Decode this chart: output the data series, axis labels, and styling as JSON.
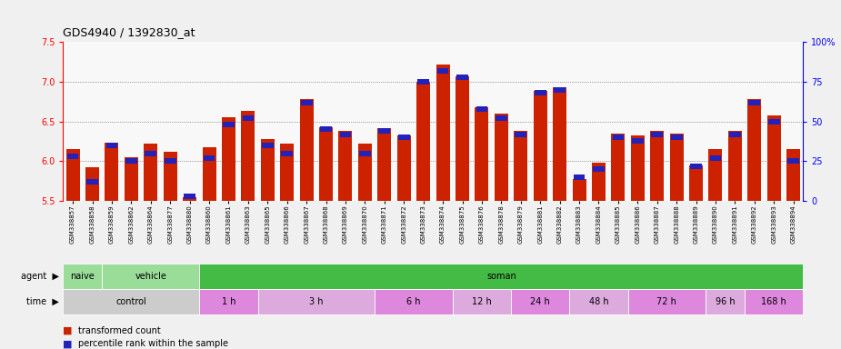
{
  "title": "GDS4940 / 1392830_at",
  "samples": [
    "GSM338857",
    "GSM338858",
    "GSM338859",
    "GSM338862",
    "GSM338864",
    "GSM338877",
    "GSM338880",
    "GSM338860",
    "GSM338861",
    "GSM338863",
    "GSM338865",
    "GSM338866",
    "GSM338867",
    "GSM338868",
    "GSM338869",
    "GSM338870",
    "GSM338871",
    "GSM338872",
    "GSM338873",
    "GSM338874",
    "GSM338875",
    "GSM338876",
    "GSM338878",
    "GSM338879",
    "GSM338881",
    "GSM338882",
    "GSM338883",
    "GSM338884",
    "GSM338885",
    "GSM338886",
    "GSM338887",
    "GSM338888",
    "GSM338889",
    "GSM338890",
    "GSM338891",
    "GSM338892",
    "GSM338893",
    "GSM338894"
  ],
  "bar_values": [
    6.15,
    5.92,
    6.23,
    6.05,
    6.22,
    6.12,
    5.55,
    6.18,
    6.55,
    6.63,
    6.28,
    6.22,
    6.78,
    6.43,
    6.38,
    6.22,
    6.42,
    6.32,
    7.0,
    7.22,
    7.07,
    6.68,
    6.6,
    6.38,
    6.88,
    6.93,
    5.78,
    5.98,
    6.35,
    6.32,
    6.38,
    6.35,
    5.95,
    6.15,
    6.38,
    6.78,
    6.58,
    6.15
  ],
  "percentile_values": [
    28,
    12,
    35,
    25,
    30,
    25,
    3,
    27,
    48,
    52,
    35,
    30,
    62,
    45,
    42,
    30,
    44,
    40,
    75,
    82,
    78,
    58,
    52,
    42,
    68,
    70,
    15,
    20,
    40,
    38,
    42,
    40,
    22,
    27,
    42,
    62,
    50,
    25
  ],
  "ylim_left": [
    5.5,
    7.5
  ],
  "ylim_right": [
    0,
    100
  ],
  "yticks_left": [
    5.5,
    6.0,
    6.5,
    7.0,
    7.5
  ],
  "yticks_right": [
    0,
    25,
    50,
    75,
    100
  ],
  "ytick_right_labels": [
    "0",
    "25",
    "50",
    "75",
    "100%"
  ],
  "bar_color": "#cc2200",
  "percentile_color": "#2222bb",
  "bg_color": "#f0f0f0",
  "plot_bg": "#ffffff",
  "agent_row": [
    {
      "label": "naive",
      "start": 0,
      "end": 2,
      "color": "#99dd99"
    },
    {
      "label": "vehicle",
      "start": 2,
      "end": 7,
      "color": "#99dd99"
    },
    {
      "label": "soman",
      "start": 7,
      "end": 38,
      "color": "#44bb44"
    }
  ],
  "time_row": [
    {
      "label": "control",
      "start": 0,
      "end": 7,
      "color": "#cccccc"
    },
    {
      "label": "1 h",
      "start": 7,
      "end": 10,
      "color": "#dd88dd"
    },
    {
      "label": "3 h",
      "start": 10,
      "end": 16,
      "color": "#ddaadd"
    },
    {
      "label": "6 h",
      "start": 16,
      "end": 20,
      "color": "#dd88dd"
    },
    {
      "label": "12 h",
      "start": 20,
      "end": 23,
      "color": "#ddaadd"
    },
    {
      "label": "24 h",
      "start": 23,
      "end": 26,
      "color": "#dd88dd"
    },
    {
      "label": "48 h",
      "start": 26,
      "end": 29,
      "color": "#ddaadd"
    },
    {
      "label": "72 h",
      "start": 29,
      "end": 33,
      "color": "#dd88dd"
    },
    {
      "label": "96 h",
      "start": 33,
      "end": 35,
      "color": "#ddaadd"
    },
    {
      "label": "168 h",
      "start": 35,
      "end": 38,
      "color": "#dd88dd"
    }
  ],
  "gridline_values": [
    6.0,
    6.5,
    7.0
  ],
  "legend_items": [
    {
      "label": "transformed count",
      "color": "#cc2200"
    },
    {
      "label": "percentile rank within the sample",
      "color": "#2222bb"
    }
  ]
}
